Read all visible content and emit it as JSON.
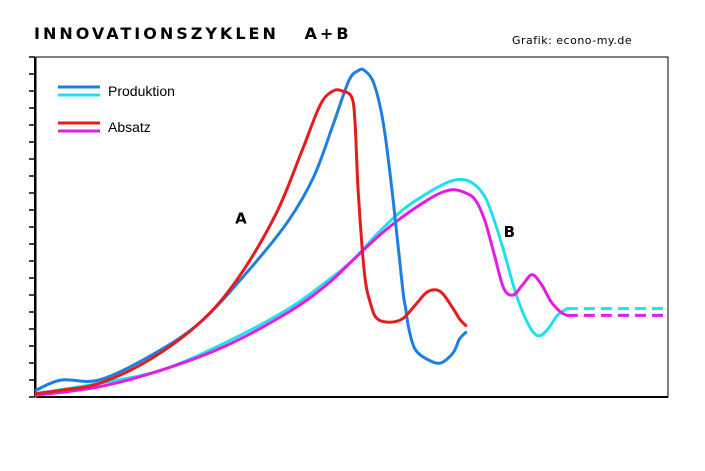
{
  "title": "INNOVATIONSZYKLEN   A+B",
  "credit": "Grafik: econo-my.de",
  "colors": {
    "produktion_a": "#1e7fe0",
    "produktion_b": "#22e0e8",
    "absatz_a": "#e51c1c",
    "absatz_b": "#e51ce5"
  },
  "chart_data": {
    "type": "line",
    "title": "INNOVATIONSZYKLEN   A+B",
    "xlabel": "",
    "ylabel": "",
    "xlim": [
      0,
      100
    ],
    "ylim": [
      0,
      100
    ],
    "grid": false,
    "legend_position": "top-left",
    "legend": [
      {
        "label": "Produktion",
        "colors": [
          "#1e7fe0",
          "#22e0e8"
        ]
      },
      {
        "label": "Absatz",
        "colors": [
          "#e51c1c",
          "#e51ce5"
        ]
      }
    ],
    "annotations": [
      {
        "text": "A",
        "x": 31.5,
        "y": 51
      },
      {
        "text": "B",
        "x": 74,
        "y": 47
      }
    ],
    "series": [
      {
        "name": "Produktion",
        "cycle": "A",
        "color": "#1e7fe0",
        "x": [
          0,
          4,
          10,
          18,
          26,
          34,
          40,
          44,
          47,
          49.5,
          51,
          52,
          53.5,
          55,
          56.5,
          58,
          58.5,
          59,
          60,
          62,
          64,
          66,
          67,
          68
        ],
        "y": [
          2,
          5,
          5,
          12,
          22,
          38,
          52,
          65,
          80,
          93,
          96,
          96,
          92,
          80,
          58,
          32,
          26,
          20,
          14,
          11,
          10,
          13,
          17,
          19
        ],
        "dashed_tail": false
      },
      {
        "name": "Absatz",
        "cycle": "A",
        "color": "#e51c1c",
        "x": [
          0,
          4,
          10,
          18,
          26,
          32,
          38,
          42,
          45,
          47,
          48.5,
          50,
          50.5,
          51,
          52,
          53,
          54,
          56,
          58,
          60,
          62,
          64,
          66,
          67,
          68
        ],
        "y": [
          1,
          2,
          4,
          11,
          22,
          35,
          54,
          72,
          86,
          90,
          90,
          88,
          80,
          60,
          36,
          27,
          23,
          22,
          23,
          27,
          31,
          31,
          26,
          23,
          21
        ],
        "dashed_tail": false
      },
      {
        "name": "Produktion",
        "cycle": "B",
        "color": "#22e0e8",
        "x": [
          0,
          10,
          20,
          30,
          40,
          46,
          50,
          54,
          58,
          62,
          65,
          67,
          69,
          71,
          72.5,
          74,
          76,
          78,
          79.5,
          81,
          82.5,
          84,
          100
        ],
        "y": [
          1,
          4,
          8,
          16,
          26,
          34,
          40,
          48,
          55,
          60,
          63,
          64,
          63,
          59,
          52,
          43,
          30,
          21,
          18,
          20,
          24,
          26,
          26
        ],
        "dashed_tail": true,
        "dash_from_x": 84
      },
      {
        "name": "Absatz",
        "cycle": "B",
        "color": "#e51ce5",
        "x": [
          0,
          10,
          20,
          30,
          40,
          46,
          50,
          54,
          58,
          62,
          64,
          66,
          68,
          69.5,
          71,
          72.5,
          74,
          75.5,
          77,
          78.5,
          80,
          81.5,
          83,
          84,
          100
        ],
        "y": [
          0.5,
          3,
          8,
          15,
          25,
          33,
          40,
          47,
          53,
          58,
          60,
          61,
          60,
          58,
          52,
          42,
          32,
          30,
          33,
          36,
          33,
          28,
          25,
          24,
          24
        ],
        "dashed_tail": true,
        "dash_from_x": 84
      }
    ]
  }
}
